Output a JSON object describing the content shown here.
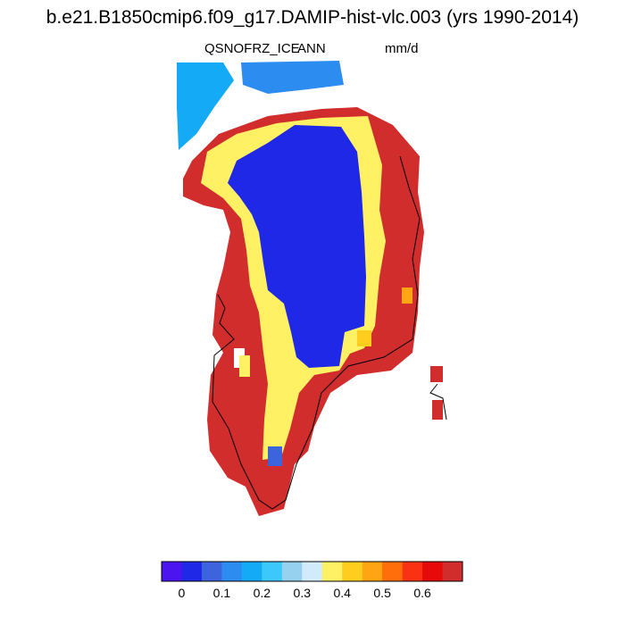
{
  "title": "b.e21.B1850cmip6.f09_g17.DAMIP-hist-vlc.003 (yrs 1990-2014)",
  "subtitle": {
    "variable": "QSNOFRZ_ICE",
    "season": "ANN",
    "units": "mm/d"
  },
  "colorbar": {
    "colors": [
      "#4b14f0",
      "#1e28e6",
      "#3c64dc",
      "#2d8cf0",
      "#14aaf5",
      "#3cc8fa",
      "#96d2f0",
      "#d2ebfa",
      "#fff064",
      "#ffcd1e",
      "#ffa514",
      "#ff6e0a",
      "#fa3214",
      "#e60a0a",
      "#d22d2d"
    ],
    "tick_labels": [
      "0",
      "0.1",
      "0.2",
      "0.3",
      "0.4",
      "0.5",
      "0.6"
    ]
  },
  "map_palette": {
    "interior": "#1e28e6",
    "coast": "#d22d2d",
    "edge": "#fff064"
  }
}
